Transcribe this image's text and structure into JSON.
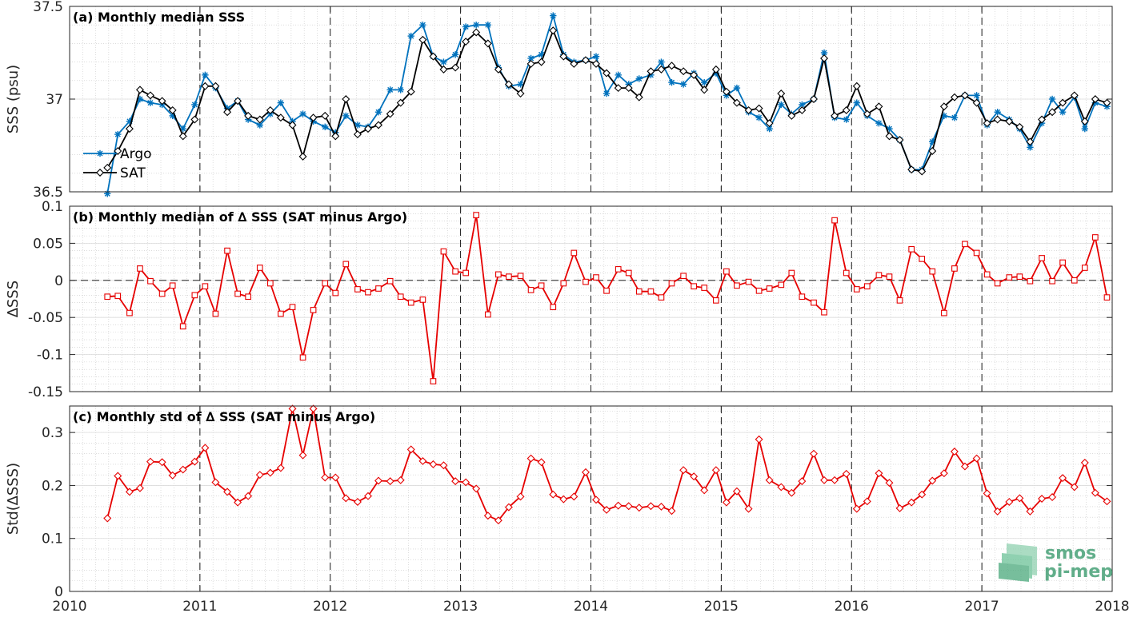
{
  "figure": {
    "x_ticks": [
      2010,
      2011,
      2012,
      2013,
      2014,
      2015,
      2016,
      2017,
      2018
    ],
    "watermark": {
      "line1": "smos",
      "line2": "pi-mep",
      "color": "#3a9a6e"
    }
  },
  "chart_data": [
    {
      "type": "line",
      "panel": "a",
      "title": "(a) Monthly median SSS",
      "ylabel": "SSS (psu)",
      "xlim": [
        2010,
        2018
      ],
      "ylim": [
        36.5,
        37.5
      ],
      "yticks": [
        36.5,
        37,
        37.5
      ],
      "y_tick_labels": [
        "36.5",
        "37",
        "37.5"
      ],
      "grid": true,
      "legend_position": "bottom-left",
      "x": [
        2010.29,
        2010.37,
        2010.46,
        2010.54,
        2010.62,
        2010.71,
        2010.79,
        2010.87,
        2010.96,
        2011.04,
        2011.12,
        2011.21,
        2011.29,
        2011.37,
        2011.46,
        2011.54,
        2011.62,
        2011.71,
        2011.79,
        2011.87,
        2011.96,
        2012.04,
        2012.12,
        2012.21,
        2012.29,
        2012.37,
        2012.46,
        2012.54,
        2012.62,
        2012.71,
        2012.79,
        2012.87,
        2012.96,
        2013.04,
        2013.12,
        2013.21,
        2013.29,
        2013.37,
        2013.46,
        2013.54,
        2013.62,
        2013.71,
        2013.79,
        2013.87,
        2013.96,
        2014.04,
        2014.12,
        2014.21,
        2014.29,
        2014.37,
        2014.46,
        2014.54,
        2014.62,
        2014.71,
        2014.79,
        2014.87,
        2014.96,
        2015.04,
        2015.12,
        2015.21,
        2015.29,
        2015.37,
        2015.46,
        2015.54,
        2015.62,
        2015.71,
        2015.79,
        2015.87,
        2015.96,
        2016.04,
        2016.12,
        2016.21,
        2016.29,
        2016.37,
        2016.46,
        2016.54,
        2016.62,
        2016.71,
        2016.79,
        2016.87,
        2016.96,
        2017.04,
        2017.12,
        2017.21,
        2017.29,
        2017.37,
        2017.46,
        2017.54,
        2017.62,
        2017.71,
        2017.79,
        2017.87,
        2017.96
      ],
      "series": [
        {
          "name": "Argo",
          "color": "#0072bd",
          "marker": "asterisk",
          "values": [
            36.49,
            36.81,
            36.88,
            37.0,
            36.98,
            36.97,
            36.91,
            36.84,
            36.97,
            37.13,
            37.06,
            36.95,
            36.99,
            36.89,
            36.86,
            36.92,
            36.98,
            36.88,
            36.92,
            36.88,
            36.85,
            36.82,
            36.91,
            36.86,
            36.85,
            36.93,
            37.05,
            37.05,
            37.34,
            37.4,
            37.23,
            37.2,
            37.24,
            37.39,
            37.4,
            37.4,
            37.17,
            37.07,
            37.08,
            37.22,
            37.24,
            37.45,
            37.24,
            37.2,
            37.21,
            37.23,
            37.03,
            37.13,
            37.08,
            37.11,
            37.13,
            37.2,
            37.09,
            37.08,
            37.14,
            37.09,
            37.14,
            37.02,
            37.06,
            36.93,
            36.9,
            36.84,
            36.97,
            36.92,
            36.97,
            37.0,
            37.25,
            36.9,
            36.89,
            36.98,
            36.91,
            36.87,
            36.84,
            36.78,
            36.62,
            36.62,
            36.77,
            36.91,
            36.9,
            37.02,
            37.02,
            36.86,
            36.93,
            36.89,
            36.84,
            36.74,
            36.87,
            37.0,
            36.93,
            37.01,
            36.84,
            36.98,
            36.96
          ]
        },
        {
          "name": "SAT",
          "color": "#000000",
          "marker": "diamond",
          "values": [
            36.63,
            36.72,
            36.84,
            37.05,
            37.02,
            36.99,
            36.94,
            36.8,
            36.89,
            37.07,
            37.07,
            36.93,
            36.99,
            36.91,
            36.89,
            36.94,
            36.9,
            36.86,
            36.69,
            36.9,
            36.91,
            36.8,
            37.0,
            36.81,
            36.84,
            36.86,
            36.92,
            36.98,
            37.04,
            37.32,
            37.23,
            37.16,
            37.17,
            37.31,
            37.36,
            37.3,
            37.16,
            37.08,
            37.03,
            37.19,
            37.2,
            37.37,
            37.23,
            37.19,
            37.21,
            37.19,
            37.14,
            37.06,
            37.06,
            37.01,
            37.15,
            37.16,
            37.18,
            37.15,
            37.13,
            37.05,
            37.16,
            37.04,
            36.98,
            36.94,
            36.95,
            36.87,
            37.03,
            36.91,
            36.94,
            37.0,
            37.22,
            36.91,
            36.94,
            37.07,
            36.92,
            36.96,
            36.8,
            36.78,
            36.62,
            36.61,
            36.72,
            36.96,
            37.01,
            37.02,
            36.98,
            36.87,
            36.89,
            36.88,
            36.85,
            36.77,
            36.89,
            36.93,
            36.98,
            37.02,
            36.88,
            37.0,
            36.98
          ]
        }
      ]
    },
    {
      "type": "line",
      "panel": "b",
      "title": "(b) Monthly median of ∆ SSS (SAT minus Argo)",
      "ylabel": "∆SSS",
      "xlim": [
        2010,
        2018
      ],
      "ylim": [
        -0.15,
        0.1
      ],
      "yticks": [
        -0.15,
        -0.1,
        -0.05,
        0,
        0.05,
        0.1
      ],
      "y_tick_labels": [
        "-0.15",
        "-0.1",
        "-0.05",
        "0",
        "0.05",
        "0.1"
      ],
      "grid": true,
      "reference_line": 0,
      "x": [
        2010.29,
        2010.37,
        2010.46,
        2010.54,
        2010.62,
        2010.71,
        2010.79,
        2010.87,
        2010.96,
        2011.04,
        2011.12,
        2011.21,
        2011.29,
        2011.37,
        2011.46,
        2011.54,
        2011.62,
        2011.71,
        2011.79,
        2011.87,
        2011.96,
        2012.04,
        2012.12,
        2012.21,
        2012.29,
        2012.37,
        2012.46,
        2012.54,
        2012.62,
        2012.71,
        2012.79,
        2012.87,
        2012.96,
        2013.04,
        2013.12,
        2013.21,
        2013.29,
        2013.37,
        2013.46,
        2013.54,
        2013.62,
        2013.71,
        2013.79,
        2013.87,
        2013.96,
        2014.04,
        2014.12,
        2014.21,
        2014.29,
        2014.37,
        2014.46,
        2014.54,
        2014.62,
        2014.71,
        2014.79,
        2014.87,
        2014.96,
        2015.04,
        2015.12,
        2015.21,
        2015.29,
        2015.37,
        2015.46,
        2015.54,
        2015.62,
        2015.71,
        2015.79,
        2015.87,
        2015.96,
        2016.04,
        2016.12,
        2016.21,
        2016.29,
        2016.37,
        2016.46,
        2016.54,
        2016.62,
        2016.71,
        2016.79,
        2016.87,
        2016.96,
        2017.04,
        2017.12,
        2017.21,
        2017.29,
        2017.37,
        2017.46,
        2017.54,
        2017.62,
        2017.71,
        2017.79,
        2017.87,
        2017.96
      ],
      "series": [
        {
          "name": "",
          "color": "#e60000",
          "marker": "square",
          "values": [
            -0.022,
            -0.021,
            -0.044,
            0.016,
            -0.001,
            -0.018,
            -0.007,
            -0.062,
            -0.02,
            -0.008,
            -0.045,
            0.04,
            -0.018,
            -0.022,
            0.017,
            -0.004,
            -0.045,
            -0.036,
            -0.104,
            -0.04,
            -0.004,
            -0.017,
            0.022,
            -0.012,
            -0.016,
            -0.011,
            -0.001,
            -0.022,
            -0.03,
            -0.026,
            -0.136,
            0.039,
            0.012,
            0.01,
            0.088,
            -0.046,
            0.008,
            0.005,
            0.006,
            -0.013,
            -0.007,
            -0.036,
            -0.004,
            0.037,
            -0.002,
            0.004,
            -0.014,
            0.015,
            0.01,
            -0.015,
            -0.015,
            -0.023,
            -0.004,
            0.006,
            -0.008,
            -0.01,
            -0.027,
            0.012,
            -0.007,
            -0.002,
            -0.014,
            -0.011,
            -0.006,
            0.01,
            -0.022,
            -0.03,
            -0.043,
            0.081,
            0.01,
            -0.012,
            -0.008,
            0.007,
            0.005,
            -0.027,
            0.042,
            0.029,
            0.012,
            -0.044,
            0.016,
            0.049,
            0.037,
            0.008,
            -0.004,
            0.004,
            0.005,
            -0.001,
            0.03,
            -0.001,
            0.024,
            0.0,
            0.017,
            0.058,
            -0.023
          ]
        }
      ]
    },
    {
      "type": "line",
      "panel": "c",
      "title": "(c) Monthly std of ∆ SSS (SAT minus Argo)",
      "ylabel": "Std(∆SSS)",
      "xlim": [
        2010,
        2018
      ],
      "ylim": [
        0,
        0.35
      ],
      "yticks": [
        0,
        0.1,
        0.2,
        0.3
      ],
      "y_tick_labels": [
        "0",
        "0.1",
        "0.2",
        "0.3"
      ],
      "grid": true,
      "x": [
        2010.29,
        2010.37,
        2010.46,
        2010.54,
        2010.62,
        2010.71,
        2010.79,
        2010.87,
        2010.96,
        2011.04,
        2011.12,
        2011.21,
        2011.29,
        2011.37,
        2011.46,
        2011.54,
        2011.62,
        2011.71,
        2011.79,
        2011.87,
        2011.96,
        2012.04,
        2012.12,
        2012.21,
        2012.29,
        2012.37,
        2012.46,
        2012.54,
        2012.62,
        2012.71,
        2012.79,
        2012.87,
        2012.96,
        2013.04,
        2013.12,
        2013.21,
        2013.29,
        2013.37,
        2013.46,
        2013.54,
        2013.62,
        2013.71,
        2013.79,
        2013.87,
        2013.96,
        2014.04,
        2014.12,
        2014.21,
        2014.29,
        2014.37,
        2014.46,
        2014.54,
        2014.62,
        2014.71,
        2014.79,
        2014.87,
        2014.96,
        2015.04,
        2015.12,
        2015.21,
        2015.29,
        2015.37,
        2015.46,
        2015.54,
        2015.62,
        2015.71,
        2015.79,
        2015.87,
        2015.96,
        2016.04,
        2016.12,
        2016.21,
        2016.29,
        2016.37,
        2016.46,
        2016.54,
        2016.62,
        2016.71,
        2016.79,
        2016.87,
        2016.96,
        2017.04,
        2017.12,
        2017.21,
        2017.29,
        2017.37,
        2017.46,
        2017.54,
        2017.62,
        2017.71,
        2017.79,
        2017.87,
        2017.96
      ],
      "series": [
        {
          "name": "",
          "color": "#e60000",
          "marker": "diamond",
          "values": [
            0.138,
            0.218,
            0.188,
            0.195,
            0.245,
            0.244,
            0.219,
            0.23,
            0.245,
            0.271,
            0.206,
            0.188,
            0.168,
            0.18,
            0.22,
            0.224,
            0.233,
            0.345,
            0.257,
            0.345,
            0.215,
            0.215,
            0.176,
            0.169,
            0.18,
            0.209,
            0.208,
            0.21,
            0.268,
            0.246,
            0.24,
            0.238,
            0.208,
            0.206,
            0.194,
            0.143,
            0.134,
            0.159,
            0.179,
            0.251,
            0.244,
            0.183,
            0.174,
            0.179,
            0.225,
            0.173,
            0.154,
            0.162,
            0.161,
            0.158,
            0.161,
            0.16,
            0.152,
            0.229,
            0.217,
            0.191,
            0.229,
            0.168,
            0.189,
            0.156,
            0.287,
            0.21,
            0.197,
            0.186,
            0.208,
            0.26,
            0.21,
            0.21,
            0.222,
            0.156,
            0.17,
            0.223,
            0.205,
            0.157,
            0.168,
            0.183,
            0.209,
            0.223,
            0.264,
            0.236,
            0.251,
            0.185,
            0.151,
            0.169,
            0.176,
            0.151,
            0.175,
            0.178,
            0.214,
            0.197,
            0.243,
            0.186,
            0.17
          ]
        }
      ]
    }
  ]
}
